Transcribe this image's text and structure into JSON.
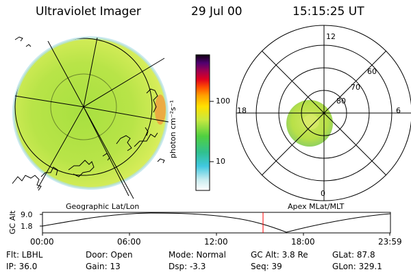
{
  "header": {
    "title": "Ultraviolet Imager",
    "date": "29 Jul 00",
    "time": "15:15:25 UT"
  },
  "colorbar": {
    "unit_label": "photon cm⁻²s⁻¹",
    "ticks": [
      "100",
      "10"
    ]
  },
  "polar_plot": {
    "mlt_labels": [
      "12",
      "18",
      "6",
      "0"
    ],
    "lat_labels": [
      "60",
      "70",
      "80"
    ]
  },
  "panels": {
    "left_caption": "Geographic Lat/Lon",
    "right_caption": "Apex MLat/MLT"
  },
  "timeline": {
    "ylabel": "GC Alt",
    "y_ticks": [
      "9.0",
      "1.8"
    ],
    "x_ticks": [
      "00:00",
      "06:00",
      "12:00",
      "18:00",
      "23:59"
    ],
    "marker_color": "#ff0000"
  },
  "footer": {
    "row1": {
      "flt": "Flt: LBHL",
      "door": "Door: Open",
      "mode": "Mode: Normal",
      "gcalt": "GC Alt: 3.8 Re",
      "glat": "GLat:  87.8"
    },
    "row2": {
      "ip": "IP: 36.0",
      "gain": "Gain: 13",
      "dsp": "Dsp:   -3.3",
      "seq": "Seq: 39",
      "glon": "GLon: 329.1"
    }
  }
}
